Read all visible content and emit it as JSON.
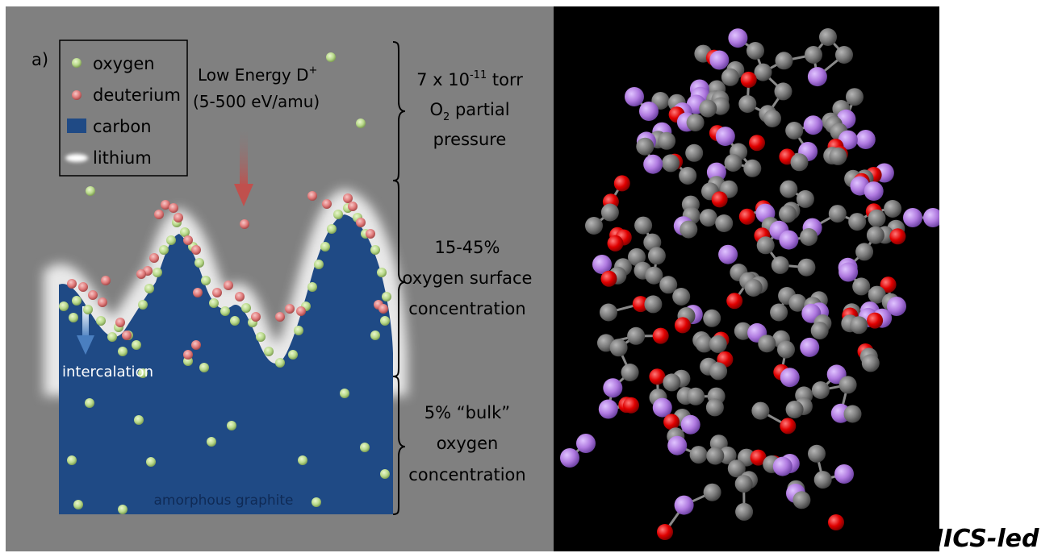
{
  "panel_label": "a)",
  "legend": {
    "oxygen": "oxygen",
    "deuterium": "deuterium",
    "carbon": "carbon",
    "lithium": "lithium"
  },
  "beam": {
    "line1": "Low Energy D",
    "line1_sup": "+",
    "line2": "(5-500 eV/amu)"
  },
  "regions": {
    "top": {
      "line1_pre": "7 x 10",
      "line1_sup": "-11",
      "line1_post": " torr",
      "line2_pre": "O",
      "line2_sub": "2",
      "line2_post": " partial",
      "line3": "pressure"
    },
    "middle": {
      "line1": "15-45%",
      "line2": "oxygen surface",
      "line3": "concentration"
    },
    "bottom": {
      "line1": "5% “bulk”",
      "line2": "oxygen",
      "line3": "concentration"
    }
  },
  "labels": {
    "intercalation": "intercalation",
    "substrate": "amorphous graphite"
  },
  "caption": "IICS-led",
  "colors": {
    "background": "#808080",
    "carbon": "#1f4a85",
    "lithium": "#e8e8e8",
    "oxygen": "#b8d98a",
    "deuterium": "#e07a7a",
    "arrow": "#c0504d",
    "molecule_carbon": "#7a7a7a",
    "molecule_oxygen": "#e00000",
    "molecule_lithium": "#b07ae0"
  }
}
